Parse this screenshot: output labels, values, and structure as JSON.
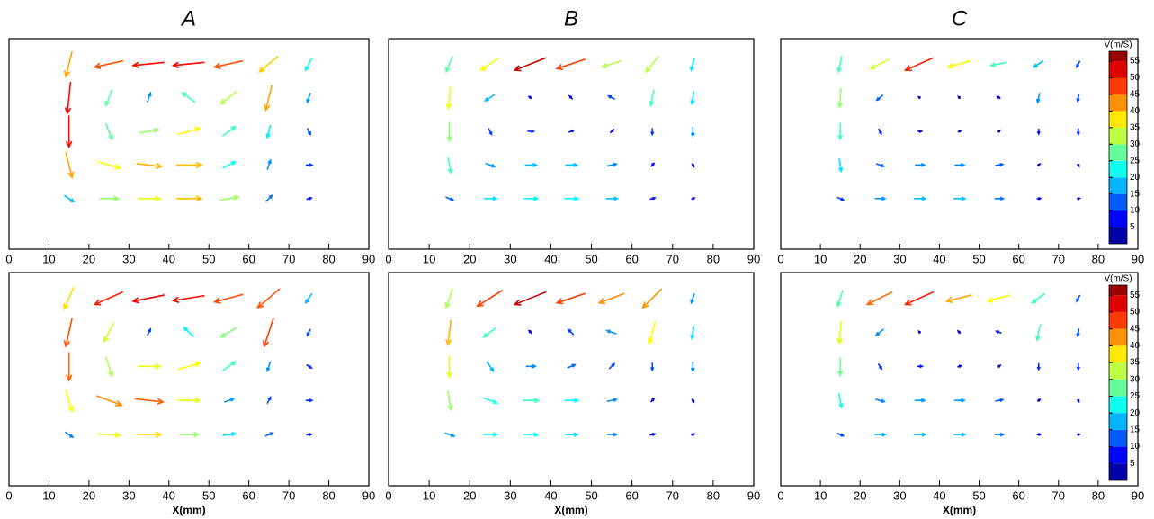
{
  "chart_data": [
    {
      "type": "quiver",
      "title": "A",
      "xlim": [
        0,
        90
      ],
      "ylim": [
        0,
        50
      ],
      "xticks": [
        0,
        10,
        20,
        30,
        40,
        50,
        60,
        70,
        80,
        90
      ],
      "clim": [
        0,
        58
      ],
      "vectors": [
        [
          15,
          44,
          -10,
          -40
        ],
        [
          25,
          44,
          -45,
          -10
        ],
        [
          35,
          44,
          -50,
          -5
        ],
        [
          45,
          44,
          -50,
          -5
        ],
        [
          55,
          44,
          -45,
          -10
        ],
        [
          65,
          44,
          -30,
          -25
        ],
        [
          75,
          44,
          -10,
          -20
        ],
        [
          15,
          36,
          -5,
          -50
        ],
        [
          25,
          36,
          -10,
          -25
        ],
        [
          35,
          36,
          5,
          15
        ],
        [
          45,
          36,
          -20,
          15
        ],
        [
          55,
          36,
          -25,
          -20
        ],
        [
          65,
          36,
          -10,
          -40
        ],
        [
          75,
          36,
          -5,
          -15
        ],
        [
          15,
          28,
          0,
          -50
        ],
        [
          25,
          28,
          10,
          -25
        ],
        [
          35,
          28,
          30,
          5
        ],
        [
          45,
          28,
          35,
          10
        ],
        [
          55,
          28,
          20,
          15
        ],
        [
          65,
          28,
          -5,
          -20
        ],
        [
          75,
          28,
          5,
          -10
        ],
        [
          15,
          20,
          10,
          -40
        ],
        [
          25,
          20,
          35,
          -10
        ],
        [
          35,
          20,
          40,
          -5
        ],
        [
          45,
          20,
          40,
          0
        ],
        [
          55,
          20,
          20,
          10
        ],
        [
          65,
          20,
          5,
          15
        ],
        [
          75,
          20,
          10,
          0
        ],
        [
          15,
          12,
          15,
          -10
        ],
        [
          25,
          12,
          30,
          0
        ],
        [
          35,
          12,
          35,
          0
        ],
        [
          45,
          12,
          40,
          0
        ],
        [
          55,
          12,
          30,
          5
        ],
        [
          65,
          12,
          10,
          10
        ],
        [
          75,
          12,
          8,
          2
        ]
      ]
    },
    {
      "type": "quiver",
      "title": "B",
      "xlim": [
        0,
        90
      ],
      "ylim": [
        0,
        50
      ],
      "xticks": [
        0,
        10,
        20,
        30,
        40,
        50,
        60,
        70,
        80,
        90
      ],
      "clim": [
        0,
        58
      ],
      "vectors": [
        [
          15,
          44,
          -10,
          -25
        ],
        [
          25,
          44,
          -30,
          -20
        ],
        [
          35,
          44,
          -50,
          -20
        ],
        [
          45,
          44,
          -45,
          -15
        ],
        [
          55,
          44,
          -30,
          -10
        ],
        [
          65,
          44,
          -20,
          -25
        ],
        [
          75,
          44,
          -5,
          -20
        ],
        [
          15,
          36,
          -3,
          -35
        ],
        [
          25,
          36,
          -15,
          -10
        ],
        [
          35,
          36,
          -5,
          3
        ],
        [
          45,
          36,
          -5,
          5
        ],
        [
          55,
          36,
          -10,
          5
        ],
        [
          65,
          36,
          -5,
          -25
        ],
        [
          75,
          36,
          -3,
          -20
        ],
        [
          15,
          28,
          0,
          -30
        ],
        [
          25,
          28,
          5,
          -10
        ],
        [
          35,
          28,
          10,
          0
        ],
        [
          45,
          28,
          8,
          3
        ],
        [
          55,
          28,
          5,
          5
        ],
        [
          65,
          28,
          0,
          -10
        ],
        [
          75,
          28,
          0,
          -15
        ],
        [
          15,
          20,
          5,
          -25
        ],
        [
          25,
          20,
          15,
          -5
        ],
        [
          35,
          20,
          18,
          0
        ],
        [
          45,
          20,
          18,
          0
        ],
        [
          55,
          20,
          15,
          3
        ],
        [
          65,
          20,
          5,
          5
        ],
        [
          75,
          20,
          3,
          -5
        ],
        [
          15,
          12,
          12,
          -5
        ],
        [
          25,
          12,
          20,
          0
        ],
        [
          35,
          12,
          22,
          0
        ],
        [
          45,
          12,
          22,
          0
        ],
        [
          55,
          12,
          18,
          0
        ],
        [
          65,
          12,
          8,
          2
        ],
        [
          75,
          12,
          5,
          2
        ]
      ]
    },
    {
      "type": "quiver",
      "title": "C",
      "xlim": [
        0,
        90
      ],
      "ylim": [
        0,
        50
      ],
      "xticks": [
        0,
        10,
        20,
        30,
        40,
        50,
        60,
        70,
        80,
        90
      ],
      "clim": [
        0,
        58
      ],
      "colorbar_label": "V(m/S)",
      "cticks": [
        5,
        10,
        15,
        20,
        25,
        30,
        35,
        40,
        45,
        50,
        55
      ],
      "vectors": [
        [
          15,
          44,
          -5,
          -25
        ],
        [
          25,
          44,
          -30,
          -15
        ],
        [
          35,
          44,
          -45,
          -20
        ],
        [
          45,
          44,
          -35,
          -10
        ],
        [
          55,
          44,
          -25,
          -5
        ],
        [
          65,
          44,
          -15,
          -10
        ],
        [
          75,
          44,
          -5,
          -10
        ],
        [
          15,
          36,
          -2,
          -30
        ],
        [
          25,
          36,
          -10,
          -8
        ],
        [
          35,
          36,
          -3,
          2
        ],
        [
          45,
          36,
          -3,
          3
        ],
        [
          55,
          36,
          -5,
          3
        ],
        [
          65,
          36,
          -3,
          -15
        ],
        [
          75,
          36,
          -2,
          -12
        ],
        [
          15,
          28,
          0,
          -25
        ],
        [
          25,
          28,
          4,
          -8
        ],
        [
          35,
          28,
          6,
          0
        ],
        [
          45,
          28,
          5,
          2
        ],
        [
          55,
          28,
          3,
          3
        ],
        [
          65,
          28,
          0,
          -8
        ],
        [
          75,
          28,
          0,
          -10
        ],
        [
          15,
          20,
          3,
          -20
        ],
        [
          25,
          20,
          12,
          -4
        ],
        [
          35,
          20,
          15,
          0
        ],
        [
          45,
          20,
          15,
          0
        ],
        [
          55,
          20,
          12,
          2
        ],
        [
          65,
          20,
          4,
          3
        ],
        [
          75,
          20,
          2,
          -4
        ],
        [
          15,
          12,
          10,
          -4
        ],
        [
          25,
          12,
          16,
          0
        ],
        [
          35,
          12,
          18,
          0
        ],
        [
          45,
          12,
          18,
          0
        ],
        [
          55,
          12,
          14,
          0
        ],
        [
          65,
          12,
          6,
          1
        ],
        [
          75,
          12,
          4,
          1
        ]
      ]
    },
    {
      "type": "quiver",
      "xlabel": "X(mm)",
      "xlim": [
        0,
        90
      ],
      "ylim": [
        0,
        50
      ],
      "xticks": [
        0,
        10,
        20,
        30,
        40,
        50,
        60,
        70,
        80,
        90
      ],
      "clim": [
        0,
        58
      ],
      "vectors": [
        [
          15,
          44,
          -15,
          -35
        ],
        [
          25,
          44,
          -45,
          -20
        ],
        [
          35,
          44,
          -50,
          -10
        ],
        [
          45,
          44,
          -50,
          -8
        ],
        [
          55,
          44,
          -45,
          -12
        ],
        [
          65,
          44,
          -35,
          -30
        ],
        [
          75,
          44,
          -10,
          -15
        ],
        [
          15,
          36,
          -10,
          -45
        ],
        [
          25,
          36,
          -15,
          -30
        ],
        [
          35,
          36,
          5,
          10
        ],
        [
          45,
          36,
          -15,
          15
        ],
        [
          55,
          36,
          -25,
          -15
        ],
        [
          65,
          36,
          -15,
          -45
        ],
        [
          75,
          36,
          -5,
          -10
        ],
        [
          15,
          28,
          0,
          -45
        ],
        [
          25,
          28,
          10,
          -30
        ],
        [
          35,
          28,
          35,
          0
        ],
        [
          45,
          28,
          35,
          10
        ],
        [
          55,
          28,
          20,
          15
        ],
        [
          65,
          28,
          -5,
          -15
        ],
        [
          75,
          28,
          8,
          -5
        ],
        [
          15,
          20,
          10,
          -35
        ],
        [
          25,
          20,
          40,
          -15
        ],
        [
          35,
          20,
          45,
          -5
        ],
        [
          45,
          20,
          35,
          0
        ],
        [
          55,
          20,
          15,
          5
        ],
        [
          65,
          20,
          5,
          10
        ],
        [
          75,
          20,
          10,
          0
        ],
        [
          15,
          12,
          12,
          -8
        ],
        [
          25,
          12,
          35,
          -2
        ],
        [
          35,
          12,
          38,
          0
        ],
        [
          45,
          12,
          30,
          0
        ],
        [
          55,
          12,
          20,
          3
        ],
        [
          65,
          12,
          12,
          5
        ],
        [
          75,
          12,
          8,
          1
        ]
      ]
    },
    {
      "type": "quiver",
      "xlabel": "X(mm)",
      "xlim": [
        0,
        90
      ],
      "ylim": [
        0,
        50
      ],
      "xticks": [
        0,
        10,
        20,
        30,
        40,
        50,
        60,
        70,
        80,
        90
      ],
      "clim": [
        0,
        58
      ],
      "vectors": [
        [
          15,
          44,
          -10,
          -30
        ],
        [
          25,
          44,
          -40,
          -25
        ],
        [
          35,
          44,
          -50,
          -20
        ],
        [
          45,
          44,
          -45,
          -15
        ],
        [
          55,
          44,
          -40,
          -15
        ],
        [
          65,
          44,
          -30,
          -30
        ],
        [
          75,
          44,
          -5,
          -15
        ],
        [
          15,
          36,
          -5,
          -40
        ],
        [
          25,
          36,
          -20,
          -15
        ],
        [
          35,
          36,
          -5,
          5
        ],
        [
          45,
          36,
          -8,
          8
        ],
        [
          55,
          36,
          -15,
          5
        ],
        [
          65,
          36,
          -10,
          -35
        ],
        [
          75,
          36,
          -3,
          -20
        ],
        [
          15,
          28,
          0,
          -35
        ],
        [
          25,
          28,
          10,
          -15
        ],
        [
          35,
          28,
          15,
          0
        ],
        [
          45,
          28,
          12,
          5
        ],
        [
          55,
          28,
          8,
          8
        ],
        [
          65,
          28,
          0,
          -12
        ],
        [
          75,
          28,
          0,
          -15
        ],
        [
          15,
          20,
          5,
          -30
        ],
        [
          25,
          20,
          22,
          -8
        ],
        [
          35,
          20,
          25,
          0
        ],
        [
          45,
          20,
          22,
          0
        ],
        [
          55,
          20,
          15,
          3
        ],
        [
          65,
          20,
          5,
          5
        ],
        [
          75,
          20,
          3,
          -5
        ],
        [
          15,
          12,
          15,
          -5
        ],
        [
          25,
          12,
          22,
          0
        ],
        [
          35,
          12,
          22,
          0
        ],
        [
          45,
          12,
          20,
          0
        ],
        [
          55,
          12,
          15,
          0
        ],
        [
          65,
          12,
          8,
          2
        ],
        [
          75,
          12,
          5,
          2
        ]
      ]
    },
    {
      "type": "quiver",
      "xlabel": "X(mm)",
      "xlim": [
        0,
        90
      ],
      "ylim": [
        0,
        50
      ],
      "xticks": [
        0,
        10,
        20,
        30,
        40,
        50,
        60,
        70,
        80,
        90
      ],
      "clim": [
        0,
        58
      ],
      "colorbar_label": "V(m/S)",
      "cticks": [
        5,
        10,
        15,
        20,
        25,
        30,
        35,
        40,
        45,
        50,
        55
      ],
      "vectors": [
        [
          15,
          44,
          -8,
          -25
        ],
        [
          25,
          44,
          -40,
          -20
        ],
        [
          35,
          44,
          -45,
          -20
        ],
        [
          45,
          44,
          -40,
          -10
        ],
        [
          55,
          44,
          -35,
          -10
        ],
        [
          65,
          44,
          -20,
          -15
        ],
        [
          75,
          44,
          -5,
          -10
        ],
        [
          15,
          36,
          -3,
          -35
        ],
        [
          25,
          36,
          -12,
          -10
        ],
        [
          35,
          36,
          -3,
          3
        ],
        [
          45,
          36,
          -4,
          4
        ],
        [
          55,
          36,
          -8,
          3
        ],
        [
          65,
          36,
          -5,
          -25
        ],
        [
          75,
          36,
          -2,
          -12
        ],
        [
          15,
          28,
          0,
          -28
        ],
        [
          25,
          28,
          5,
          -8
        ],
        [
          35,
          28,
          8,
          0
        ],
        [
          45,
          28,
          6,
          2
        ],
        [
          55,
          28,
          4,
          3
        ],
        [
          65,
          28,
          0,
          -10
        ],
        [
          75,
          28,
          0,
          -10
        ],
        [
          15,
          20,
          4,
          -22
        ],
        [
          25,
          20,
          14,
          -4
        ],
        [
          35,
          20,
          16,
          0
        ],
        [
          45,
          20,
          16,
          0
        ],
        [
          55,
          20,
          12,
          2
        ],
        [
          65,
          20,
          4,
          3
        ],
        [
          75,
          20,
          2,
          -4
        ],
        [
          15,
          12,
          10,
          -4
        ],
        [
          25,
          12,
          17,
          0
        ],
        [
          35,
          12,
          18,
          0
        ],
        [
          45,
          12,
          18,
          0
        ],
        [
          55,
          12,
          14,
          0
        ],
        [
          65,
          12,
          6,
          1
        ],
        [
          75,
          12,
          4,
          1
        ]
      ]
    }
  ]
}
